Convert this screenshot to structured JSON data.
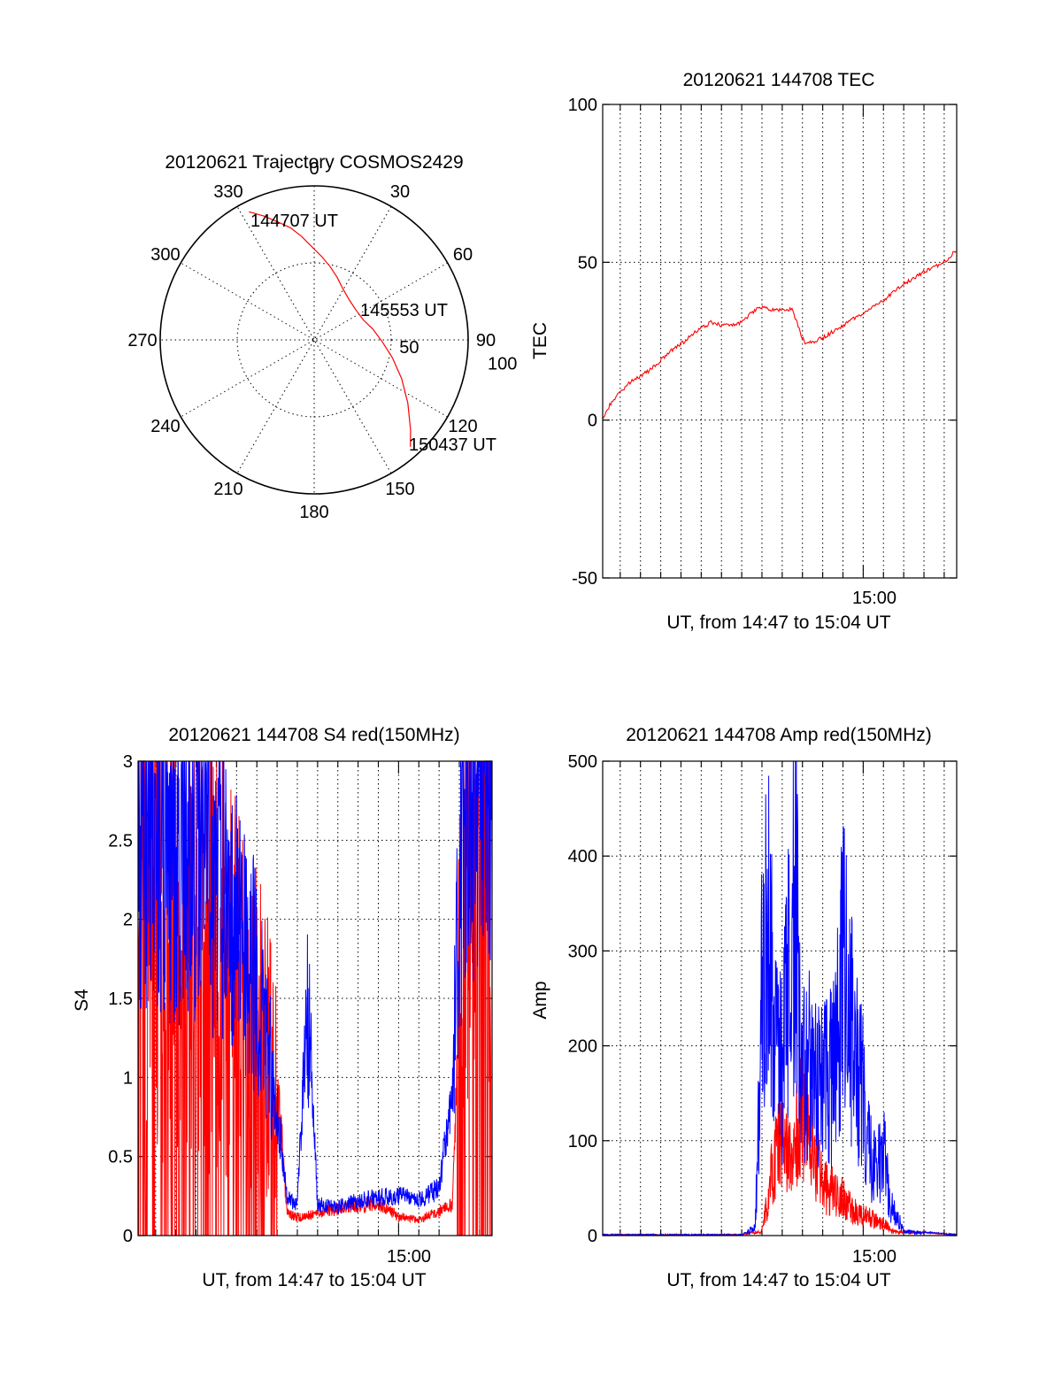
{
  "colors": {
    "red": "#ff0000",
    "blue": "#0000ff",
    "axis": "#000000",
    "background": "#ffffff"
  },
  "chart_data": [
    {
      "type": "polar",
      "title": "20120621 Trajectory COSMOS2429",
      "angle_ticks": [
        "0",
        "30",
        "60",
        "90",
        "120",
        "150",
        "180",
        "210",
        "240",
        "270",
        "300",
        "330"
      ],
      "radius_ticks": [
        "50",
        "100"
      ],
      "elevation_range": [
        0,
        90
      ],
      "grid": true,
      "series": [
        {
          "color": "red",
          "azimuth": [
            333,
            338,
            343,
            348,
            353,
            358,
            5,
            12,
            20,
            30,
            42,
            55,
            68,
            80,
            92,
            103,
            114,
            124,
            133,
            138
          ],
          "elevation": [
            6,
            12,
            18,
            23,
            29,
            35,
            41,
            46,
            51,
            56,
            59,
            60,
            59,
            55,
            50,
            43,
            34,
            24,
            13,
            6
          ]
        }
      ],
      "annotations": [
        "144707 UT",
        "145553 UT",
        "150437 UT"
      ]
    },
    {
      "type": "line",
      "title": "20120621 144708 TEC",
      "xlabel": "UT, from 14:47 to 15:04 UT",
      "ylabel": "TEC",
      "xlim": [
        "14:47:08",
        "15:04:37"
      ],
      "ylim": [
        -50,
        100
      ],
      "x_tick_labels": [
        "15:00"
      ],
      "y_tick_labels": [
        "100",
        "50",
        "0",
        "-50"
      ],
      "grid": true,
      "series": [
        {
          "color": "red",
          "x": [
            "14:47:08",
            "14:47:30",
            "14:48:00",
            "14:48:30",
            "14:49:00",
            "14:49:30",
            "14:50:00",
            "14:50:30",
            "14:51:00",
            "14:51:30",
            "14:52:00",
            "14:52:30",
            "14:53:00",
            "14:53:30",
            "14:54:00",
            "14:54:30",
            "14:55:00",
            "14:55:30",
            "14:56:00",
            "14:56:30",
            "14:57:00",
            "14:57:10",
            "14:58:00",
            "14:59:00",
            "15:00:00",
            "15:01:00",
            "15:02:00",
            "15:03:00",
            "15:04:00",
            "15:04:37"
          ],
          "y": [
            0,
            5,
            9,
            12,
            14,
            16,
            19,
            22,
            24,
            27,
            29,
            31,
            30,
            30,
            31,
            34,
            36,
            35,
            35,
            35,
            26,
            24,
            26,
            30,
            34,
            38,
            43,
            47,
            50,
            54
          ]
        }
      ]
    },
    {
      "type": "line",
      "title": "20120621 144708 S4 red(150MHz)",
      "xlabel": "UT, from 14:47 to 15:04 UT",
      "ylabel": "S4",
      "xlim": [
        "14:47:08",
        "15:04:37"
      ],
      "ylim": [
        0,
        3
      ],
      "x_tick_labels": [
        "15:00"
      ],
      "y_tick_labels": [
        "3",
        "2.5",
        "2",
        "1.5",
        "1",
        "0.5",
        "0"
      ],
      "grid": true,
      "series": [
        {
          "color": "red",
          "x": [
            "14:47:08",
            "14:48:00",
            "14:49:00",
            "14:50:00",
            "14:51:00",
            "14:52:00",
            "14:53:00",
            "14:54:00",
            "14:54:30",
            "14:55:00",
            "14:56:00",
            "14:57:00",
            "14:58:00",
            "14:59:00",
            "15:00:00",
            "15:01:00",
            "15:02:00",
            "15:02:40",
            "15:03:00",
            "15:03:30",
            "15:04:00",
            "15:04:37"
          ],
          "y": [
            2.0,
            2.2,
            2.0,
            1.9,
            1.8,
            1.6,
            1.3,
            1.0,
            0.15,
            0.11,
            0.14,
            0.17,
            0.19,
            0.21,
            0.12,
            0.1,
            0.15,
            0.2,
            1.5,
            2.8,
            3.0,
            3.0
          ]
        },
        {
          "color": "blue",
          "x": [
            "14:47:08",
            "14:48:00",
            "14:49:00",
            "14:50:00",
            "14:51:00",
            "14:52:00",
            "14:53:00",
            "14:54:00",
            "14:54:30",
            "14:55:00",
            "14:55:30",
            "14:56:00",
            "14:57:00",
            "14:58:00",
            "14:59:00",
            "15:00:00",
            "15:01:00",
            "15:02:00",
            "15:02:40",
            "15:03:00",
            "15:03:30",
            "15:04:00",
            "15:04:37"
          ],
          "y": [
            2.6,
            2.5,
            2.4,
            2.4,
            2.2,
            2.0,
            1.6,
            0.8,
            0.25,
            0.19,
            1.5,
            0.2,
            0.18,
            0.22,
            0.24,
            0.26,
            0.22,
            0.3,
            0.9,
            2.3,
            2.8,
            3.0,
            3.0
          ]
        }
      ]
    },
    {
      "type": "line",
      "title": "20120621 144708 Amp red(150MHz)",
      "xlabel": "UT, from 14:47 to 15:04 UT",
      "ylabel": "Amp",
      "xlim": [
        "14:47:08",
        "15:04:37"
      ],
      "ylim": [
        0,
        500
      ],
      "x_tick_labels": [
        "15:00"
      ],
      "y_tick_labels": [
        "500",
        "400",
        "300",
        "200",
        "100",
        "0"
      ],
      "grid": true,
      "series": [
        {
          "color": "red",
          "x": [
            "14:47:08",
            "14:54:00",
            "14:55:00",
            "14:55:30",
            "14:56:00",
            "14:56:30",
            "14:57:00",
            "14:57:30",
            "14:58:00",
            "14:58:30",
            "14:59:00",
            "14:59:30",
            "15:00:00",
            "15:00:30",
            "15:01:00",
            "15:01:30",
            "15:04:37"
          ],
          "y": [
            0,
            0,
            5,
            80,
            120,
            100,
            160,
            110,
            60,
            55,
            45,
            30,
            25,
            20,
            15,
            5,
            0
          ]
        },
        {
          "color": "blue",
          "x": [
            "14:47:08",
            "14:54:00",
            "14:54:40",
            "14:55:00",
            "14:55:20",
            "14:55:40",
            "14:56:00",
            "14:56:20",
            "14:56:40",
            "14:57:00",
            "14:57:20",
            "14:57:40",
            "14:58:00",
            "14:58:30",
            "14:59:00",
            "14:59:20",
            "14:59:40",
            "15:00:00",
            "15:00:20",
            "15:00:40",
            "15:01:00",
            "15:01:20",
            "15:01:40",
            "15:02:00",
            "15:04:37"
          ],
          "y": [
            0,
            0,
            10,
            300,
            400,
            250,
            200,
            330,
            420,
            200,
            210,
            180,
            180,
            200,
            330,
            280,
            220,
            170,
            100,
            80,
            110,
            40,
            25,
            5,
            0
          ]
        }
      ]
    }
  ]
}
